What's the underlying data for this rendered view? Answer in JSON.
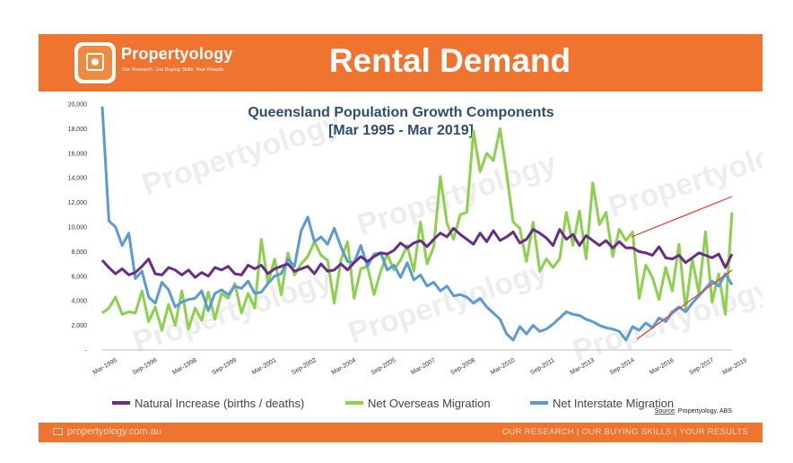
{
  "header": {
    "brand_name": "Propertyology",
    "brand_tagline": "Our Research. Our Buying Skills. Your Results",
    "title": "Rental Demand"
  },
  "footer": {
    "url": "propertyology.com.au",
    "slogan": "OUR RESEARCH | OUR BUYING SKILLS | YOUR RESULTS"
  },
  "watermark": "Propertyology",
  "source_prefix": "Source",
  "source_text": ": Propertyology, ABS",
  "colors": {
    "accent": "#ee7430",
    "natural": "#6a2c86",
    "overseas": "#8cd14b",
    "interstate": "#5b9bd5",
    "trend": "#e83a3a"
  },
  "chart_data": {
    "type": "line",
    "title": "Queensland Population Growth Components",
    "subtitle": "[Mar 1995 - Mar 2019]",
    "xlabel": "",
    "ylabel": "",
    "ylim": [
      0,
      20000
    ],
    "yticks": [
      "20,000",
      "18,000",
      "16,000",
      "14,000",
      "12,000",
      "10,000",
      "8,000",
      "6,000",
      "4,000",
      "2,000",
      "-"
    ],
    "x_tick_labels": [
      "Mar-1995",
      "Sep-1996",
      "Mar-1998",
      "Sep-1999",
      "Mar-2001",
      "Sep-2002",
      "Mar-2004",
      "Sep-2005",
      "Mar-2007",
      "Sep-2008",
      "Mar-2010",
      "Sep-2011",
      "Mar-2013",
      "Sep-2014",
      "Mar-2016",
      "Sep-2017",
      "Mar-2019"
    ],
    "legend_position": "bottom",
    "grid": false,
    "series": [
      {
        "name": "Natural Increase (births / deaths)",
        "values": [
          7300,
          6700,
          6200,
          6600,
          6100,
          6300,
          6800,
          7400,
          6200,
          6100,
          6700,
          6500,
          6100,
          6500,
          5900,
          6300,
          6000,
          6700,
          6500,
          6800,
          6200,
          6100,
          6900,
          6600,
          6900,
          6200,
          6600,
          6800,
          7000,
          6400,
          6600,
          6800,
          6200,
          7000,
          6400,
          6500,
          7000,
          6500,
          7100,
          7600,
          7200,
          7600,
          7900,
          7800,
          8100,
          8700,
          8300,
          8700,
          8900,
          8400,
          9000,
          9500,
          9200,
          9900,
          9400,
          9000,
          8600,
          9500,
          8800,
          9700,
          8900,
          9200,
          9600,
          8700,
          9000,
          9800,
          9500,
          9100,
          8500,
          9800,
          9000,
          9400,
          8500,
          9300,
          8900,
          8500,
          8900,
          8300,
          8800,
          8300,
          8300,
          8000,
          7900,
          7700,
          8400,
          7500,
          7400,
          7700,
          7100,
          7500,
          7900,
          7700,
          7500,
          7800,
          6700,
          7800
        ]
      },
      {
        "name": "Net Overseas Migration",
        "values": [
          3000,
          3400,
          4300,
          2900,
          3100,
          3000,
          4800,
          2300,
          3500,
          1600,
          3700,
          2000,
          4800,
          1700,
          3400,
          2400,
          4700,
          2500,
          4600,
          4200,
          5400,
          3000,
          4600,
          3400,
          9000,
          5400,
          7400,
          4500,
          7900,
          6100,
          7000,
          7600,
          8800,
          7700,
          7300,
          3800,
          7300,
          8800,
          4200,
          6600,
          6800,
          4500,
          6400,
          7800,
          6500,
          7300,
          8500,
          6400,
          10400,
          7000,
          8400,
          14100,
          10300,
          9000,
          11000,
          11200,
          17800,
          14500,
          16000,
          15400,
          18000,
          14300,
          10400,
          9900,
          7200,
          10400,
          6400,
          7400,
          6700,
          7400,
          11200,
          8500,
          11300,
          7400,
          13600,
          10200,
          11200,
          7600,
          9800,
          8900,
          9600,
          4200,
          6900,
          5900,
          4100,
          6700,
          4800,
          8600,
          3300,
          7400,
          4600,
          9600,
          3900,
          6200,
          2900,
          11200
        ]
      },
      {
        "name": "Net Interstate Migration",
        "values": [
          19800,
          10500,
          10000,
          8500,
          9500,
          5800,
          6400,
          4300,
          3800,
          5500,
          4900,
          3500,
          3900,
          4100,
          4200,
          4800,
          3200,
          4600,
          4900,
          4500,
          5200,
          5000,
          5600,
          4600,
          4700,
          5400,
          6000,
          6200,
          7400,
          6800,
          9700,
          10800,
          8800,
          9200,
          8600,
          9900,
          8400,
          7200,
          7100,
          8500,
          6800,
          7800,
          7900,
          6500,
          6900,
          5900,
          7100,
          5700,
          6100,
          5200,
          5500,
          4800,
          5200,
          4400,
          4500,
          4300,
          3800,
          4200,
          3500,
          3000,
          2500,
          1300,
          800,
          1900,
          1300,
          2000,
          1500,
          1700,
          2100,
          2600,
          3100,
          2900,
          2800,
          2500,
          2300,
          2000,
          1800,
          1700,
          1500,
          800,
          1900,
          1600,
          2200,
          1800,
          2600,
          2300,
          3100,
          3500,
          3100,
          3800,
          4400,
          5000,
          5600,
          5200,
          6200,
          5300
        ]
      }
    ]
  }
}
